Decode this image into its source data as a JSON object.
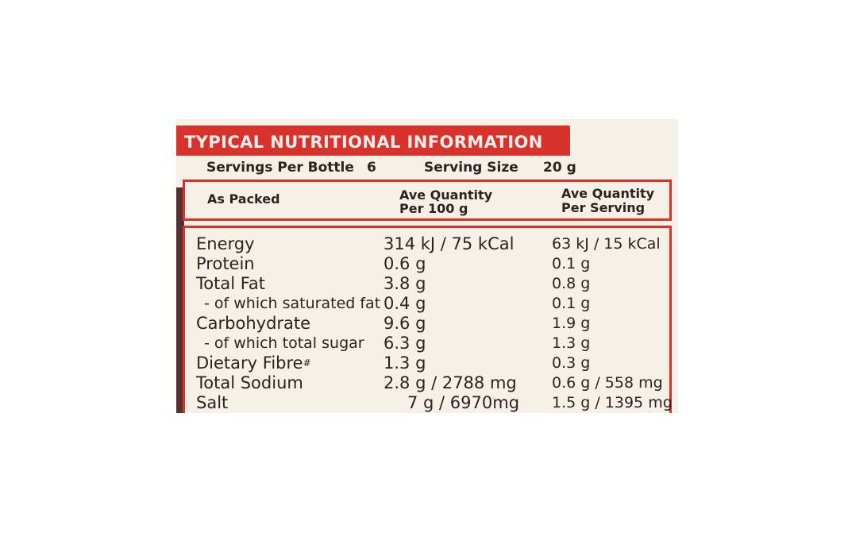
{
  "title": "TYPICAL NUTRITIONAL INFORMATION",
  "servings": {
    "per_bottle_label": "Servings Per Bottle",
    "per_bottle_value": "6",
    "size_label": "Serving Size",
    "size_value": "20 g"
  },
  "headers": {
    "col1": "As Packed",
    "col2_line1": "Ave Quantity",
    "col2_line2": "Per 100 g",
    "col3_line1": "Ave Quantity",
    "col3_line2": "Per Serving"
  },
  "rows": [
    {
      "name": "Energy",
      "per100": "314 kJ / 75 kCal",
      "perServing": "63 kJ / 15 kCal"
    },
    {
      "name": "Protein",
      "per100": "0.6 g",
      "perServing": "0.1 g"
    },
    {
      "name": "Total Fat",
      "per100": "3.8 g",
      "perServing": "0.8 g"
    },
    {
      "name": "- of which saturated fat",
      "per100": "0.4 g",
      "perServing": "0.1 g"
    },
    {
      "name": "Carbohydrate",
      "per100": "9.6 g",
      "perServing": "1.9 g"
    },
    {
      "name": "- of which total sugar",
      "per100": "6.3 g",
      "perServing": "1.3 g"
    },
    {
      "name": "Dietary Fibre",
      "name_mark": "#",
      "per100": "1.3 g",
      "perServing": "0.3 g"
    },
    {
      "name": "Total Sodium",
      "per100": "2.8 g / 2788 mg",
      "perServing": "0.6 g / 558 mg"
    },
    {
      "name": "Salt",
      "per100": "7 g / 6970mg",
      "perServing": "1.5 g / 1395 mg"
    }
  ],
  "colors": {
    "accent": "#d8322c",
    "paper": "#f5f1e6",
    "ink": "#2b2322"
  }
}
